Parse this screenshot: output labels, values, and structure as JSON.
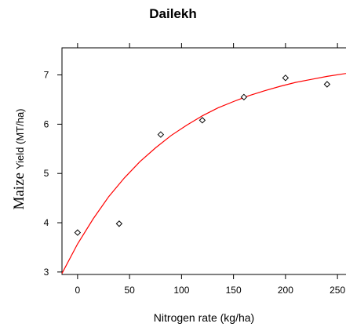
{
  "chart_data": {
    "type": "scatter",
    "title": "Dailekh",
    "xlabel": "Nitrogen rate (kg/ha)",
    "ylabel_prefix": "Maize",
    "ylabel": "Yield (MT/ha)",
    "xlim": [
      -15,
      265
    ],
    "ylim": [
      2.95,
      7.55
    ],
    "xticks": [
      0,
      50,
      100,
      150,
      200,
      250
    ],
    "xtick_labels": [
      "0",
      "50",
      "100",
      "150",
      "200",
      "250"
    ],
    "yticks": [
      3,
      4,
      5,
      6,
      7
    ],
    "ytick_labels": [
      "3",
      "4",
      "5",
      "6",
      "7"
    ],
    "grid": false,
    "points": {
      "x": [
        0,
        40,
        80,
        120,
        160,
        200,
        240
      ],
      "y": [
        3.8,
        3.98,
        5.79,
        6.08,
        6.55,
        6.94,
        6.81
      ],
      "marker": "diamond",
      "color": "#000000"
    },
    "fitted_curve": {
      "x": [
        -15,
        0,
        15,
        30,
        45,
        60,
        75,
        90,
        105,
        120,
        135,
        150,
        165,
        180,
        195,
        210,
        225,
        240,
        255,
        265
      ],
      "y": [
        2.97,
        3.57,
        4.08,
        4.53,
        4.91,
        5.24,
        5.52,
        5.77,
        5.98,
        6.17,
        6.33,
        6.46,
        6.58,
        6.68,
        6.77,
        6.85,
        6.91,
        6.97,
        7.02,
        7.05
      ],
      "color": "#ff0000"
    }
  }
}
